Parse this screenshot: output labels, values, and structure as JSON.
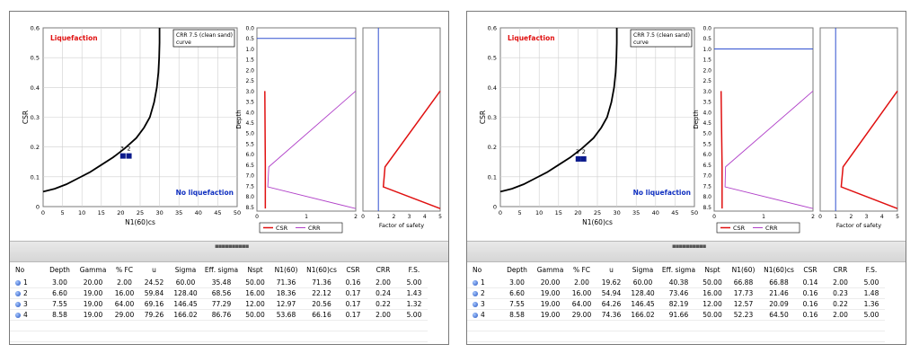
{
  "columns": [
    "No",
    "Depth",
    "Gamma",
    "% FC",
    "u",
    "Sigma",
    "Eff. sigma",
    "Nspt",
    "N1(60)",
    "N1(60)cs",
    "CSR",
    "CRR",
    "F.S."
  ],
  "colors": {
    "curve": "#000000",
    "points": "#0a1a8c",
    "csr": "#e01010",
    "crr": "#b040c8",
    "gwt": "#3050d0",
    "liq_text": "#e01010",
    "noliq_text": "#1030c0",
    "grid": "#cfcfcf"
  },
  "panels": [
    {
      "plot_main": {
        "ylabel": "CSR",
        "xlabel": "N1(60)cs",
        "yticks": [
          "0.6",
          "0.5",
          "0.4",
          "0.3",
          "0.2",
          "0.1",
          "0"
        ],
        "xticks": [
          "0",
          "5",
          "10",
          "15",
          "20",
          "25",
          "30",
          "35",
          "40",
          "45",
          "50"
        ],
        "legend_box": "CRR 7.5 (clean sand) curve",
        "liq_label": "Liquefaction",
        "noliq_label": "No liquefaction",
        "point_labels": [
          "3",
          "2"
        ]
      },
      "plot_depth": {
        "ylabel": "Depth",
        "ticks": [
          "0.0",
          "0.5",
          "1.0",
          "1.5",
          "2.0",
          "2.5",
          "3.0",
          "3.5",
          "4.0",
          "4.5",
          "5.0",
          "5.5",
          "6.0",
          "6.5",
          "7.0",
          "7.5",
          "8.0",
          "8.5"
        ],
        "xticks": [
          "0",
          "1",
          "2"
        ],
        "legend_csr": "CSR",
        "legend_crr": "CRR"
      },
      "plot_fs": {
        "xlabel": "Factor of safety",
        "xticks": [
          "0",
          "1",
          "2",
          "3",
          "4",
          "5"
        ]
      },
      "rows": [
        [
          "1",
          "3.00",
          "20.00",
          "2.00",
          "24.52",
          "60.00",
          "35.48",
          "50.00",
          "71.36",
          "71.36",
          "0.16",
          "2.00",
          "5.00"
        ],
        [
          "2",
          "6.60",
          "19.00",
          "16.00",
          "59.84",
          "128.40",
          "68.56",
          "16.00",
          "18.36",
          "22.12",
          "0.17",
          "0.24",
          "1.43"
        ],
        [
          "3",
          "7.55",
          "19.00",
          "64.00",
          "69.16",
          "146.45",
          "77.29",
          "12.00",
          "12.97",
          "20.56",
          "0.17",
          "0.22",
          "1.32"
        ],
        [
          "4",
          "8.58",
          "19.00",
          "29.00",
          "79.26",
          "166.02",
          "86.76",
          "50.00",
          "53.68",
          "66.16",
          "0.17",
          "2.00",
          "5.00"
        ]
      ]
    },
    {
      "plot_main": {
        "ylabel": "CSR",
        "xlabel": "N1(60)cs",
        "yticks": [
          "0.6",
          "0.5",
          "0.4",
          "0.3",
          "0.2",
          "0.1",
          "0"
        ],
        "xticks": [
          "0",
          "5",
          "10",
          "15",
          "20",
          "25",
          "30",
          "35",
          "40",
          "45",
          "50"
        ],
        "legend_box": "CRR 7.5 (clean sand) curve",
        "liq_label": "Liquefaction",
        "noliq_label": "No liquefaction",
        "point_labels": [
          "3",
          "2"
        ]
      },
      "plot_depth": {
        "ylabel": "Depth",
        "ticks": [
          "0.0",
          "0.5",
          "1.0",
          "1.5",
          "2.0",
          "2.5",
          "3.0",
          "3.5",
          "4.0",
          "4.5",
          "5.0",
          "5.5",
          "6.0",
          "6.5",
          "7.0",
          "7.5",
          "8.0",
          "8.5"
        ],
        "xticks": [
          "0",
          "1",
          "2"
        ],
        "legend_csr": "CSR",
        "legend_crr": "CRR"
      },
      "plot_fs": {
        "xlabel": "Factor of safety",
        "xticks": [
          "0",
          "1",
          "2",
          "3",
          "4",
          "5"
        ]
      },
      "rows": [
        [
          "1",
          "3.00",
          "20.00",
          "2.00",
          "19.62",
          "60.00",
          "40.38",
          "50.00",
          "66.88",
          "66.88",
          "0.14",
          "2.00",
          "5.00"
        ],
        [
          "2",
          "6.60",
          "19.00",
          "16.00",
          "54.94",
          "128.40",
          "73.46",
          "16.00",
          "17.73",
          "21.46",
          "0.16",
          "0.23",
          "1.48"
        ],
        [
          "3",
          "7.55",
          "19.00",
          "64.00",
          "64.26",
          "146.45",
          "82.19",
          "12.00",
          "12.57",
          "20.09",
          "0.16",
          "0.22",
          "1.36"
        ],
        [
          "4",
          "8.58",
          "19.00",
          "29.00",
          "74.36",
          "166.02",
          "91.66",
          "50.00",
          "52.23",
          "64.50",
          "0.16",
          "2.00",
          "5.00"
        ]
      ]
    }
  ]
}
